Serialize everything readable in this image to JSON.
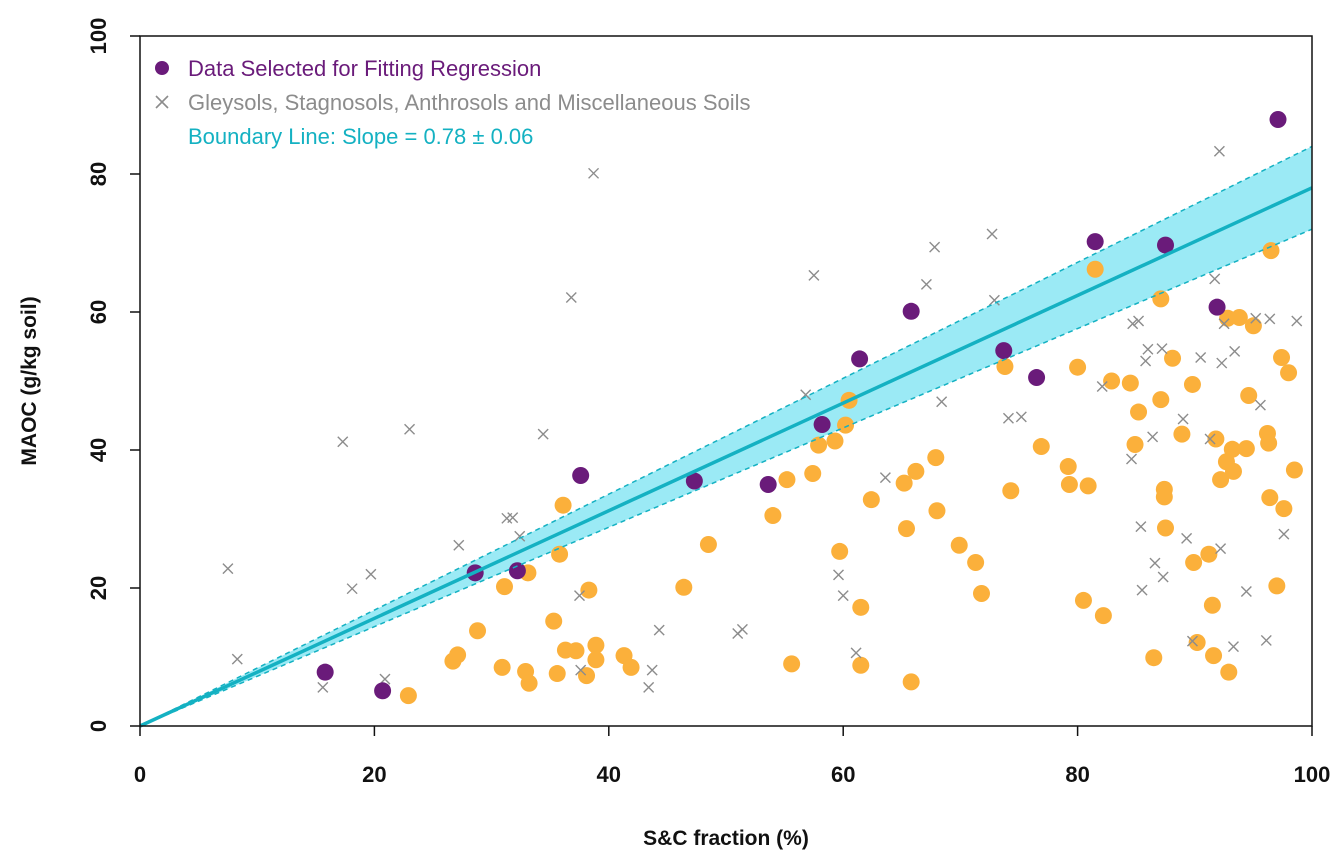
{
  "chart_data": {
    "type": "scatter",
    "title": "",
    "xlabel": "S&C fraction (%)",
    "ylabel": "MAOC (g/kg soil)",
    "xlim": [
      0,
      100
    ],
    "ylim": [
      0,
      100
    ],
    "xticks": [
      "0",
      "20",
      "40",
      "60",
      "80",
      "100"
    ],
    "yticks": [
      "0",
      "20",
      "40",
      "60",
      "80",
      "100"
    ],
    "grid": false,
    "legend_position": "top-left",
    "legend": [
      {
        "label": "Data Selected for Fitting Regression",
        "marker": "filled-circle",
        "color": "#6a1b7a"
      },
      {
        "label": "Gleysols, Stagnosols, Anthrosols and Miscellaneous Soils",
        "marker": "x",
        "color": "#8c8c8c"
      },
      {
        "label": "Boundary Line: Slope = 0.78 ± 0.06",
        "marker": "line",
        "color": "#14b1c2"
      }
    ],
    "colors": {
      "selected": "#6a1b7a",
      "other": "#fbb03b",
      "excluded": "#8c8c8c",
      "line": "#14b1c2",
      "band": "#9beaf5"
    },
    "boundary_line": {
      "slope": 0.78,
      "slope_se": 0.06,
      "intercept": 0
    },
    "series": [
      {
        "name": "Data Selected for Fitting Regression",
        "marker": "filled-circle",
        "points": [
          [
            15.8,
            7.8
          ],
          [
            20.7,
            5.1
          ],
          [
            28.6,
            22.2
          ],
          [
            32.2,
            22.5
          ],
          [
            37.6,
            36.3
          ],
          [
            47.3,
            35.5
          ],
          [
            53.6,
            35.0
          ],
          [
            58.2,
            43.7
          ],
          [
            61.4,
            53.2
          ],
          [
            65.8,
            60.1
          ],
          [
            73.7,
            54.4
          ],
          [
            76.5,
            50.5
          ],
          [
            81.5,
            70.2
          ],
          [
            87.5,
            69.7
          ],
          [
            91.9,
            60.7
          ],
          [
            97.1,
            87.9
          ]
        ]
      },
      {
        "marker": "filled-circle",
        "points": [
          [
            22.9,
            4.4
          ],
          [
            26.7,
            9.4
          ],
          [
            27.1,
            10.3
          ],
          [
            28.8,
            13.8
          ],
          [
            30.9,
            8.5
          ],
          [
            31.1,
            20.2
          ],
          [
            32.9,
            7.9
          ],
          [
            33.1,
            22.2
          ],
          [
            33.2,
            6.2
          ],
          [
            35.3,
            15.2
          ],
          [
            35.6,
            7.6
          ],
          [
            35.8,
            24.9
          ],
          [
            36.1,
            32.0
          ],
          [
            36.3,
            11.0
          ],
          [
            37.2,
            10.9
          ],
          [
            38.1,
            7.3
          ],
          [
            38.3,
            19.7
          ],
          [
            38.9,
            11.7
          ],
          [
            38.9,
            9.6
          ],
          [
            41.3,
            10.2
          ],
          [
            41.9,
            8.5
          ],
          [
            46.4,
            20.1
          ],
          [
            48.5,
            26.3
          ],
          [
            54.0,
            30.5
          ],
          [
            55.2,
            35.7
          ],
          [
            55.6,
            9.0
          ],
          [
            57.4,
            36.6
          ],
          [
            57.9,
            40.7
          ],
          [
            59.3,
            41.3
          ],
          [
            59.7,
            25.3
          ],
          [
            60.2,
            43.6
          ],
          [
            60.5,
            47.2
          ],
          [
            61.5,
            17.2
          ],
          [
            61.5,
            8.8
          ],
          [
            62.4,
            32.8
          ],
          [
            65.2,
            35.2
          ],
          [
            65.4,
            28.6
          ],
          [
            65.8,
            6.4
          ],
          [
            66.2,
            36.9
          ],
          [
            67.9,
            38.9
          ],
          [
            68.0,
            31.2
          ],
          [
            69.9,
            26.2
          ],
          [
            71.3,
            23.7
          ],
          [
            71.8,
            19.2
          ],
          [
            73.8,
            52.1
          ],
          [
            74.3,
            34.1
          ],
          [
            76.9,
            40.5
          ],
          [
            79.2,
            37.6
          ],
          [
            79.3,
            35.0
          ],
          [
            80.0,
            52.0
          ],
          [
            80.5,
            18.2
          ],
          [
            80.9,
            34.8
          ],
          [
            81.5,
            66.2
          ],
          [
            82.2,
            16.0
          ],
          [
            82.9,
            50.0
          ],
          [
            84.5,
            49.7
          ],
          [
            84.9,
            40.8
          ],
          [
            85.2,
            45.5
          ],
          [
            86.5,
            9.9
          ],
          [
            87.1,
            61.9
          ],
          [
            87.1,
            47.3
          ],
          [
            87.4,
            34.3
          ],
          [
            87.4,
            33.2
          ],
          [
            87.5,
            28.7
          ],
          [
            88.1,
            53.3
          ],
          [
            88.9,
            42.3
          ],
          [
            89.8,
            49.5
          ],
          [
            89.9,
            23.7
          ],
          [
            90.2,
            12.1
          ],
          [
            91.2,
            24.9
          ],
          [
            91.5,
            17.5
          ],
          [
            91.6,
            10.2
          ],
          [
            91.8,
            41.6
          ],
          [
            92.2,
            35.7
          ],
          [
            92.7,
            38.3
          ],
          [
            92.8,
            59.1
          ],
          [
            92.9,
            7.8
          ],
          [
            93.2,
            40.1
          ],
          [
            93.3,
            36.9
          ],
          [
            93.8,
            59.2
          ],
          [
            94.4,
            40.2
          ],
          [
            94.6,
            47.9
          ],
          [
            95.0,
            58.0
          ],
          [
            96.2,
            42.4
          ],
          [
            96.3,
            41.0
          ],
          [
            96.4,
            33.1
          ],
          [
            96.5,
            68.9
          ],
          [
            97.0,
            20.3
          ],
          [
            97.4,
            53.4
          ],
          [
            97.6,
            31.5
          ],
          [
            98.0,
            51.2
          ],
          [
            98.5,
            37.1
          ]
        ]
      },
      {
        "name": "Gleysols, Stagnosols, Anthrosols and Miscellaneous Soils",
        "marker": "x",
        "points": [
          [
            7.5,
            22.8
          ],
          [
            8.3,
            9.7
          ],
          [
            15.6,
            5.6
          ],
          [
            17.3,
            41.2
          ],
          [
            18.1,
            19.9
          ],
          [
            19.7,
            22.0
          ],
          [
            20.9,
            6.8
          ],
          [
            23.0,
            43.0
          ],
          [
            27.2,
            26.2
          ],
          [
            31.3,
            30.1
          ],
          [
            31.8,
            30.2
          ],
          [
            32.4,
            27.5
          ],
          [
            34.4,
            42.3
          ],
          [
            36.8,
            62.1
          ],
          [
            37.5,
            18.9
          ],
          [
            37.6,
            8.1
          ],
          [
            38.7,
            80.1
          ],
          [
            43.4,
            5.6
          ],
          [
            43.7,
            8.1
          ],
          [
            44.3,
            13.9
          ],
          [
            51.0,
            13.4
          ],
          [
            51.4,
            14.0
          ],
          [
            56.8,
            48.0
          ],
          [
            57.5,
            65.3
          ],
          [
            59.6,
            21.9
          ],
          [
            60.0,
            18.9
          ],
          [
            61.1,
            10.6
          ],
          [
            63.6,
            36.0
          ],
          [
            67.1,
            64.0
          ],
          [
            67.8,
            69.4
          ],
          [
            68.4,
            47.0
          ],
          [
            72.7,
            71.3
          ],
          [
            72.9,
            61.7
          ],
          [
            74.1,
            44.6
          ],
          [
            75.2,
            44.8
          ],
          [
            82.1,
            49.2
          ],
          [
            84.6,
            38.7
          ],
          [
            84.7,
            58.3
          ],
          [
            85.2,
            58.7
          ],
          [
            85.4,
            28.9
          ],
          [
            85.5,
            19.7
          ],
          [
            85.8,
            52.9
          ],
          [
            86.0,
            54.6
          ],
          [
            86.4,
            41.9
          ],
          [
            86.6,
            23.6
          ],
          [
            87.2,
            54.7
          ],
          [
            87.3,
            21.6
          ],
          [
            89.0,
            44.5
          ],
          [
            89.3,
            27.2
          ],
          [
            89.8,
            12.3
          ],
          [
            90.5,
            53.4
          ],
          [
            91.3,
            41.6
          ],
          [
            91.7,
            64.8
          ],
          [
            92.1,
            83.3
          ],
          [
            92.2,
            25.7
          ],
          [
            92.3,
            52.6
          ],
          [
            92.5,
            58.3
          ],
          [
            93.3,
            11.5
          ],
          [
            93.4,
            54.3
          ],
          [
            94.4,
            19.5
          ],
          [
            95.2,
            59.1
          ],
          [
            95.6,
            46.5
          ],
          [
            96.1,
            12.4
          ],
          [
            96.4,
            59.0
          ],
          [
            97.6,
            27.8
          ],
          [
            98.7,
            58.7
          ]
        ]
      }
    ]
  }
}
